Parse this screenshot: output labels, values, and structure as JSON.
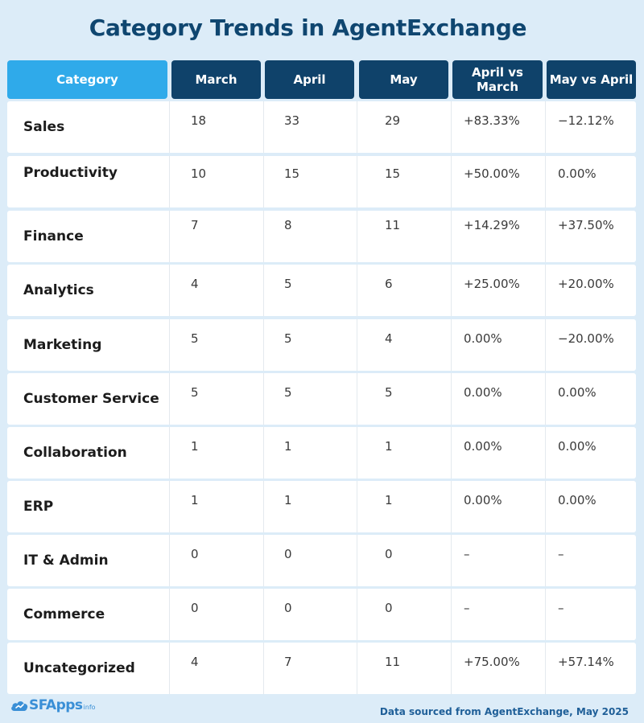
{
  "title": "Category Trends in AgentExchange",
  "chart_data": {
    "type": "table",
    "columns": [
      "Category",
      "March",
      "April",
      "May",
      "April vs March",
      "May vs April"
    ],
    "rows": [
      {
        "category": "Sales",
        "march": "18",
        "april": "33",
        "may": "29",
        "april_vs_march": "+83.33%",
        "may_vs_april": "−12.12%"
      },
      {
        "category": "Productivity",
        "march": "10",
        "april": "15",
        "may": "15",
        "april_vs_march": "+50.00%",
        "may_vs_april": "0.00%"
      },
      {
        "category": "Finance",
        "march": "7",
        "april": "8",
        "may": "11",
        "april_vs_march": "+14.29%",
        "may_vs_april": "+37.50%"
      },
      {
        "category": "Analytics",
        "march": "4",
        "april": "5",
        "may": "6",
        "april_vs_march": "+25.00%",
        "may_vs_april": "+20.00%"
      },
      {
        "category": "Marketing",
        "march": "5",
        "april": "5",
        "may": "4",
        "april_vs_march": "0.00%",
        "may_vs_april": "−20.00%"
      },
      {
        "category": "Customer Service",
        "march": "5",
        "april": "5",
        "may": "5",
        "april_vs_march": "0.00%",
        "may_vs_april": "0.00%"
      },
      {
        "category": "Collaboration",
        "march": "1",
        "april": "1",
        "may": "1",
        "april_vs_march": "0.00%",
        "may_vs_april": "0.00%"
      },
      {
        "category": "ERP",
        "march": "1",
        "april": "1",
        "may": "1",
        "april_vs_march": "0.00%",
        "may_vs_april": "0.00%"
      },
      {
        "category": "IT & Admin",
        "march": "0",
        "april": "0",
        "may": "0",
        "april_vs_march": "–",
        "may_vs_april": "–"
      },
      {
        "category": "Commerce",
        "march": "0",
        "april": "0",
        "may": "0",
        "april_vs_march": "–",
        "may_vs_april": "–"
      },
      {
        "category": "Uncategorized",
        "march": "4",
        "april": "7",
        "may": "11",
        "april_vs_march": "+75.00%",
        "may_vs_april": "+57.14%"
      }
    ]
  },
  "header": {
    "category": "Category",
    "march": "March",
    "april": "April",
    "may": "May",
    "april_vs_march_line1": "April vs",
    "april_vs_march_line2": "March",
    "may_vs_april": "May vs April"
  },
  "logo": {
    "main": "SFApps",
    "sub": "info",
    "icon": "cloud-icon"
  },
  "footer_note": "Data sourced from AgentExchange, May 2025",
  "colors": {
    "background": "#dcecf8",
    "title": "#0f4670",
    "header_category": "#2faaea",
    "header_dark": "#0f426a",
    "footer": "#1f5f98"
  }
}
